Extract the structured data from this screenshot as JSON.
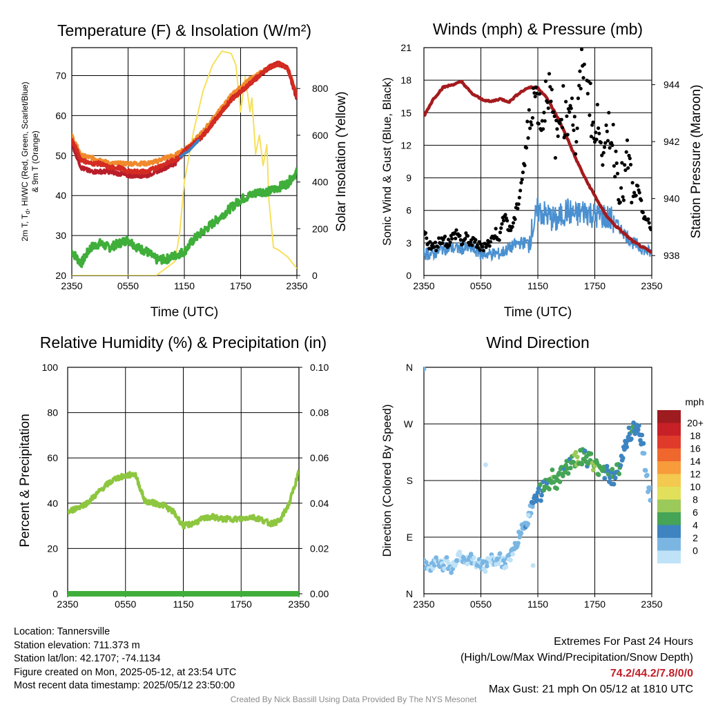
{
  "chart_data": [
    {
      "type": "line",
      "title": "Temperature (F) & Insolation (W/m²)",
      "xlabel": "Time (UTC)",
      "ylabel": "2m T, Td, HI/WC (Red, Green, Scarlet/Blue) & 9m T (Orange)",
      "ylabel_line1": "2m T, T",
      "ylabel_sub": "d",
      "ylabel_line1_rest": ", HI/WC (Red, Green, Scarlet/Blue)",
      "ylabel_line2": "& 9m T (Orange)",
      "y2label": "Solar Insolation (Yellow)",
      "x_ticks": [
        "2350",
        "0550",
        "1150",
        "1750",
        "2350"
      ],
      "ylim": [
        20,
        77
      ],
      "y_ticks": [
        20,
        30,
        40,
        50,
        60,
        70
      ],
      "y2lim": [
        0,
        975
      ],
      "y2_ticks": [
        0,
        200,
        400,
        600,
        800
      ],
      "grid": true,
      "colors": {
        "t2m": "#d42b22",
        "dew": "#3fae3a",
        "t9m": "#f08a2c",
        "hiwc": "#b81e2a",
        "hiwc_blue": "#3d7fc4",
        "solar": "#f6e05a"
      },
      "series": [
        {
          "key": "t2m",
          "x": [
            0,
            1,
            2,
            3,
            4,
            5,
            6,
            7,
            8,
            9,
            10,
            11,
            12,
            13,
            14,
            15,
            16,
            17,
            18,
            19,
            20,
            21,
            22,
            23,
            24
          ],
          "values": [
            54,
            49,
            48,
            48,
            47,
            47,
            46,
            46,
            46,
            47,
            48,
            49,
            51,
            53,
            55,
            58,
            61,
            64,
            66,
            68,
            70,
            72,
            73,
            72,
            65
          ]
        },
        {
          "key": "t9m",
          "x": [
            0,
            1,
            2,
            3,
            4,
            5,
            6,
            7,
            8,
            9,
            10,
            11,
            12,
            13,
            14,
            15,
            16,
            17,
            18,
            19,
            20,
            21,
            22,
            23,
            24
          ],
          "values": [
            55,
            50,
            49.5,
            49,
            48,
            48,
            48,
            48,
            48,
            48.5,
            49.5,
            50,
            51.5,
            53.5,
            56,
            59,
            62,
            65,
            67,
            69,
            70.5,
            72,
            73,
            72,
            65
          ]
        },
        {
          "key": "hiwc",
          "x": [
            0,
            1,
            2,
            3,
            4,
            5,
            6,
            7,
            8,
            9,
            10,
            11,
            12,
            13,
            14,
            15,
            16,
            17,
            18,
            19,
            20,
            21,
            22,
            23,
            24
          ],
          "values": [
            53,
            47,
            46,
            46,
            46,
            45.5,
            45,
            45,
            45,
            46,
            47,
            48,
            51,
            53,
            55,
            58,
            61,
            64,
            66,
            68,
            70,
            72,
            73,
            72,
            64
          ]
        },
        {
          "key": "hiwc_blue",
          "x": [
            11.5,
            12,
            12.4,
            12.8,
            13.2,
            13.6
          ],
          "values": [
            49.5,
            50.5,
            51,
            52,
            53,
            54
          ]
        },
        {
          "key": "dew",
          "x": [
            0,
            1,
            2,
            3,
            4,
            5,
            6,
            7,
            8,
            9,
            10,
            11,
            12,
            13,
            14,
            15,
            16,
            17,
            18,
            19,
            20,
            21,
            22,
            23,
            24
          ],
          "values": [
            26,
            23,
            27,
            28,
            27,
            28,
            29,
            27,
            26,
            24,
            24,
            25,
            26,
            29,
            31,
            33,
            35,
            37,
            39,
            40,
            41,
            41,
            42,
            43,
            46
          ]
        },
        {
          "key": "solar",
          "axis": "y2",
          "x": [
            0,
            6,
            8,
            9,
            10,
            11,
            11.5,
            12,
            13,
            14,
            15,
            16,
            17,
            17.5,
            18,
            18.5,
            19,
            19.2,
            19.6,
            20,
            20.4,
            20.8,
            21,
            21.5,
            22,
            23,
            24
          ],
          "values": [
            0,
            0,
            0,
            0,
            30,
            60,
            180,
            400,
            620,
            790,
            900,
            960,
            950,
            900,
            700,
            850,
            700,
            760,
            520,
            600,
            470,
            560,
            330,
            120,
            110,
            80,
            30
          ]
        }
      ]
    },
    {
      "type": "scatter",
      "title": "Winds (mph) & Pressure (mb)",
      "xlabel": "Time (UTC)",
      "ylabel": "Sonic Wind & Gust (Blue, Black)",
      "y2label": "Station Pressure (Maroon)",
      "x_ticks": [
        "2350",
        "0550",
        "1150",
        "1750",
        "2350"
      ],
      "ylim": [
        0,
        21
      ],
      "y_ticks": [
        0,
        3,
        6,
        9,
        12,
        15,
        18,
        21
      ],
      "y2lim": [
        937.3,
        945.3
      ],
      "y2_ticks": [
        938,
        940,
        942,
        944
      ],
      "grid": true,
      "colors": {
        "wind": "#4a90d0",
        "gust": "#000000",
        "pressure": "#a31b1e"
      },
      "series": [
        {
          "key": "wind",
          "x": [
            0,
            1,
            2,
            3,
            4,
            5,
            6,
            7,
            8,
            9,
            10,
            11,
            12,
            13,
            14,
            15,
            16,
            17,
            18,
            19,
            20,
            21,
            22,
            23,
            24
          ],
          "values": [
            2,
            2,
            2.5,
            2.5,
            2.5,
            2.5,
            2,
            2,
            2,
            2.5,
            3,
            3,
            6,
            5.5,
            5,
            6,
            5.5,
            6,
            5.5,
            5.5,
            5,
            4,
            3,
            2.5,
            2
          ]
        },
        {
          "key": "pressure",
          "axis": "y2",
          "x": [
            0,
            1,
            2,
            3,
            4,
            5,
            6,
            7,
            8,
            9,
            10,
            11,
            12,
            13,
            14,
            15,
            16,
            17,
            18,
            19,
            20,
            21,
            22,
            23,
            24
          ],
          "values": [
            942.9,
            943.5,
            943.9,
            944.0,
            944.1,
            943.7,
            943.5,
            943.4,
            943.5,
            943.4,
            943.7,
            943.9,
            943.9,
            943.5,
            942.9,
            942.2,
            941.4,
            940.7,
            940.1,
            939.5,
            939.1,
            938.8,
            938.5,
            938.3,
            938.1
          ]
        },
        {
          "key": "gust",
          "x": [
            0,
            0.5,
            1,
            1.5,
            2,
            2.5,
            3,
            3.5,
            4,
            4.5,
            5,
            5.5,
            6,
            6.5,
            7,
            7.5,
            8,
            8.5,
            9,
            9.5,
            10,
            10.5,
            11,
            11.5,
            12,
            12.5,
            13,
            13.5,
            14,
            14.5,
            15,
            15.5,
            16,
            16.5,
            17,
            17.5,
            18,
            18.5,
            19,
            19.5,
            20,
            20.5,
            21,
            21.5,
            22,
            22.5,
            23,
            23.5,
            24
          ],
          "values": [
            4,
            3,
            2.5,
            3,
            3.5,
            3,
            3.5,
            4,
            3,
            3.5,
            3,
            3,
            2.5,
            3,
            3,
            4,
            3.5,
            6,
            4,
            5,
            7,
            10,
            13,
            17,
            16,
            14,
            18,
            15,
            12,
            16,
            14,
            17,
            12,
            18,
            21,
            16,
            12,
            15,
            10,
            14,
            12,
            9,
            8,
            11,
            7,
            8,
            6,
            5,
            4
          ]
        }
      ]
    },
    {
      "type": "line",
      "title": "Relative Humidity (%) & Precipitation (in)",
      "ylabel": "Percent & Precipitation",
      "x_ticks": [
        "2350",
        "0550",
        "1150",
        "1750",
        "2350"
      ],
      "ylim": [
        0,
        100
      ],
      "y_ticks": [
        0,
        20,
        40,
        60,
        80,
        100
      ],
      "y2lim": [
        0,
        0.1
      ],
      "y2_ticks": [
        "0.00",
        "0.02",
        "0.04",
        "0.06",
        "0.08",
        "0.10"
      ],
      "grid": true,
      "colors": {
        "rh": "#8dc63f",
        "precip": "#3fae3a"
      },
      "series": [
        {
          "key": "rh",
          "x": [
            0,
            1,
            2,
            3,
            4,
            5,
            6,
            7,
            8,
            9,
            10,
            11,
            12,
            13,
            14,
            15,
            16,
            17,
            18,
            19,
            20,
            21,
            22,
            23,
            24
          ],
          "values": [
            36,
            38,
            40,
            44,
            48,
            51,
            52,
            53,
            41,
            40,
            39,
            36,
            30,
            31,
            33,
            34,
            33,
            33,
            33,
            34,
            33,
            31,
            32,
            40,
            54
          ]
        },
        {
          "key": "precip",
          "x": [
            0,
            24
          ],
          "values": [
            0,
            0
          ]
        }
      ]
    },
    {
      "type": "scatter",
      "title": "Wind Direction",
      "ylabel": "Direction (Colored By Speed)",
      "x_ticks": [
        "2350",
        "0550",
        "1150",
        "1750",
        "2350"
      ],
      "y_ticks": [
        "N",
        "E",
        "S",
        "W",
        "N"
      ],
      "ylim": [
        0,
        360
      ],
      "grid": true,
      "colorbar": {
        "title": "mph",
        "labels": [
          "20+",
          "18",
          "16",
          "14",
          "12",
          "10",
          "8",
          "6",
          "4",
          "2",
          "0"
        ],
        "colors": [
          "#9e1b1f",
          "#c72027",
          "#e03a2b",
          "#f0672d",
          "#f79b3b",
          "#f3c94f",
          "#e2e05a",
          "#9bc95a",
          "#45a456",
          "#3d84c1",
          "#7bb6e3",
          "#bfe2f7"
        ]
      },
      "series": [
        {
          "key": "dir",
          "x": [
            0,
            0.5,
            1,
            1.5,
            2,
            2.5,
            3,
            3.5,
            4,
            4.5,
            5,
            5.5,
            6,
            6.5,
            7,
            7.5,
            8,
            8.5,
            9,
            9.5,
            10,
            10.5,
            11,
            11.5,
            12,
            12.5,
            13,
            13.5,
            14,
            14.5,
            15,
            15.5,
            16,
            16.5,
            17,
            17.5,
            18,
            18.5,
            19,
            19.5,
            20,
            20.5,
            21,
            21.5,
            22,
            22.5,
            23,
            23.5,
            24
          ],
          "values": [
            45,
            40,
            50,
            55,
            45,
            50,
            40,
            55,
            60,
            50,
            55,
            45,
            50,
            40,
            60,
            50,
            55,
            45,
            60,
            70,
            90,
            110,
            120,
            150,
            155,
            165,
            170,
            185,
            175,
            190,
            200,
            210,
            215,
            220,
            215,
            210,
            205,
            200,
            195,
            190,
            185,
            195,
            230,
            250,
            265,
            260,
            240,
            180,
            150
          ],
          "speeds": [
            1,
            1,
            1,
            1,
            1,
            1,
            1,
            1,
            1,
            1,
            1,
            1,
            1,
            1,
            1,
            1,
            1,
            1,
            1,
            2,
            2,
            2,
            3,
            4,
            5,
            5,
            6,
            7,
            6,
            6,
            5,
            6,
            7,
            6,
            5,
            6,
            7,
            6,
            5,
            5,
            4,
            5,
            4,
            4,
            5,
            4,
            3,
            2,
            2
          ]
        },
        {
          "key": "dir_outliers",
          "x": [
            0,
            6.5,
            11.5,
            11
          ],
          "values": [
            357,
            205,
            45,
            125
          ],
          "speeds": [
            1,
            0,
            0,
            0
          ]
        }
      ]
    }
  ],
  "info": {
    "location": "Location: Tannersville",
    "elevation": "Station elevation: 711.373 m",
    "latlon": "Station lat/lon: 42.1707; -74.1134",
    "created": "Figure created on Mon, 2025-05-12, at 23:54 UTC",
    "recent": "Most recent data timestamp: 2025/05/12 23:50:00"
  },
  "extremes": {
    "title": "Extremes For Past 24 Hours",
    "subtitle": "(High/Low/Max Wind/Precipitation/Snow Depth)",
    "values": "74.2/44.2/7.8/0/0",
    "gust": "Max Gust: 21 mph On 05/12 at 1810 UTC"
  },
  "credit": "Created By Nick Bassill Using Data Provided By The NYS Mesonet"
}
